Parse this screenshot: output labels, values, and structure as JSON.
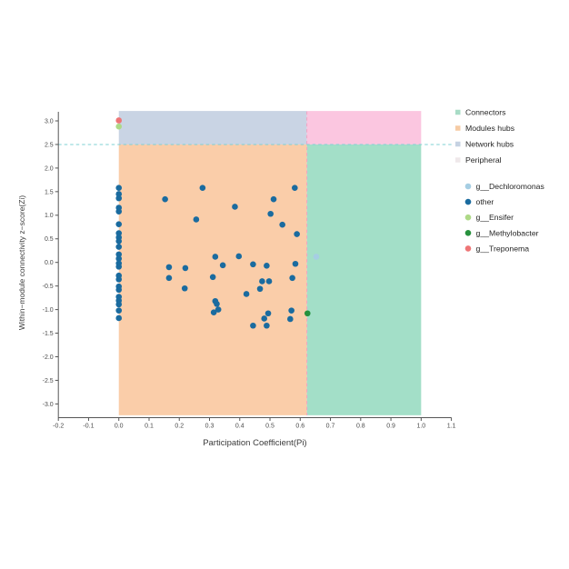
{
  "chart_data": {
    "type": "scatter",
    "xlabel": "Participation Coefficient(Pi)",
    "ylabel": "Within−module connectivity z−score(Zi)",
    "xlim": [
      -0.2,
      1.1
    ],
    "ylim": [
      -3.0,
      3.0
    ],
    "xticks": [
      -0.2,
      -0.1,
      0.0,
      0.1,
      0.2,
      0.3,
      0.4,
      0.5,
      0.6,
      0.7,
      0.8,
      0.9,
      1.0,
      1.1
    ],
    "xtick_labels": [
      "-0.2",
      "-0.1",
      "0.0",
      "0.1",
      "0.2",
      "0.3",
      "0.4",
      "0.5",
      "0.6",
      "0.7",
      "0.8",
      "0.9",
      "1.0",
      "1.1"
    ],
    "yticks": [
      3.0,
      2.5,
      2.0,
      1.5,
      1.0,
      0.5,
      0.0,
      -0.5,
      -1.0,
      -1.5,
      -2.0,
      -2.5,
      -3.0
    ],
    "ytick_labels": [
      "3.0",
      "2.5",
      "2.0",
      "1.5",
      "1.0",
      "0.5",
      "0.0",
      "-0.5",
      "-1.0",
      "-1.5",
      "-2.0",
      "-2.5",
      "-3.0"
    ],
    "grid": false,
    "legend_position": "right",
    "thresholds": {
      "zi": 2.5,
      "pi": 0.622
    },
    "threshold_line_colors": {
      "zi": "#7FD0D3",
      "pi": "#F2A3C3"
    },
    "regions": [
      {
        "quadrant": "top-left",
        "label": "Network hubs",
        "color": "#C9D4E4",
        "x": [
          0.0,
          0.622
        ],
        "y": [
          2.5,
          3.21
        ]
      },
      {
        "quadrant": "top-right",
        "label": "Peripheral",
        "color": "#FBC6E0",
        "x": [
          0.622,
          1.0
        ],
        "y": [
          2.5,
          3.21
        ]
      },
      {
        "quadrant": "bottom-left",
        "label": "Modules hubs",
        "color": "#FACDA9",
        "x": [
          0.0,
          0.622
        ],
        "y": [
          -3.24,
          2.5
        ]
      },
      {
        "quadrant": "bottom-right",
        "label": "Connectors",
        "color": "#A3DFC8",
        "x": [
          0.622,
          1.0
        ],
        "y": [
          -3.24,
          2.5
        ]
      }
    ],
    "series": [
      {
        "name": "g__Dechloromonas",
        "color": "#A6CEE3",
        "points": [
          [
            0.653,
            0.12
          ]
        ]
      },
      {
        "name": "other",
        "color": "#1A6B9F",
        "points": [
          [
            0.0,
            1.58
          ],
          [
            0.0,
            1.45
          ],
          [
            0.0,
            1.36
          ],
          [
            0.0,
            1.16
          ],
          [
            0.0,
            1.08
          ],
          [
            0.0,
            0.81
          ],
          [
            0.0,
            0.62
          ],
          [
            0.0,
            0.53
          ],
          [
            0.0,
            0.45
          ],
          [
            0.0,
            0.33
          ],
          [
            0.0,
            0.17
          ],
          [
            0.0,
            0.08
          ],
          [
            0.0,
            -0.02
          ],
          [
            0.0,
            -0.09
          ],
          [
            0.0,
            -0.28
          ],
          [
            0.0,
            -0.36
          ],
          [
            0.0,
            -0.51
          ],
          [
            0.0,
            -0.58
          ],
          [
            0.0,
            -0.73
          ],
          [
            0.0,
            -0.81
          ],
          [
            0.0,
            -0.89
          ],
          [
            0.0,
            -1.02
          ],
          [
            0.0,
            -1.18
          ],
          [
            0.277,
            1.58
          ],
          [
            0.582,
            1.58
          ],
          [
            0.153,
            1.34
          ],
          [
            0.512,
            1.34
          ],
          [
            0.384,
            1.18
          ],
          [
            0.502,
            1.03
          ],
          [
            0.256,
            0.91
          ],
          [
            0.541,
            0.8
          ],
          [
            0.589,
            0.6
          ],
          [
            0.319,
            0.12
          ],
          [
            0.397,
            0.13
          ],
          [
            0.344,
            -0.06
          ],
          [
            0.444,
            -0.04
          ],
          [
            0.489,
            -0.07
          ],
          [
            0.584,
            -0.03
          ],
          [
            0.166,
            -0.1
          ],
          [
            0.22,
            -0.12
          ],
          [
            0.166,
            -0.33
          ],
          [
            0.311,
            -0.31
          ],
          [
            0.574,
            -0.33
          ],
          [
            0.218,
            -0.55
          ],
          [
            0.474,
            -0.4
          ],
          [
            0.497,
            -0.4
          ],
          [
            0.467,
            -0.56
          ],
          [
            0.422,
            -0.67
          ],
          [
            0.319,
            -0.82
          ],
          [
            0.324,
            -0.88
          ],
          [
            0.329,
            -1.0
          ],
          [
            0.314,
            -1.06
          ],
          [
            0.571,
            -1.02
          ],
          [
            0.494,
            -1.08
          ],
          [
            0.481,
            -1.19
          ],
          [
            0.567,
            -1.2
          ],
          [
            0.444,
            -1.34
          ],
          [
            0.489,
            -1.34
          ]
        ]
      },
      {
        "name": "g__Ensifer",
        "color": "#AED987",
        "points": [
          [
            0.0,
            2.88
          ]
        ]
      },
      {
        "name": "g__Methylobacter",
        "color": "#27913D",
        "points": [
          [
            0.624,
            -1.08
          ]
        ]
      },
      {
        "name": "g__Treponema",
        "color": "#EE7576",
        "points": [
          [
            0.0,
            3.01
          ]
        ]
      }
    ]
  },
  "legend": {
    "region_items": [
      {
        "label": "Connectors",
        "color": "#A8DCC6"
      },
      {
        "label": "Modules hubs",
        "color": "#F6CBA4"
      },
      {
        "label": "Network hubs",
        "color": "#C6D2E2"
      },
      {
        "label": "Peripheral",
        "color": "#EFE8EA"
      }
    ],
    "taxa_items": [
      {
        "label": "g__Dechloromonas",
        "color": "#A6CEE3"
      },
      {
        "label": "other",
        "color": "#1A6B9F"
      },
      {
        "label": "g__Ensifer",
        "color": "#AED987"
      },
      {
        "label": "g__Methylobacter",
        "color": "#27913D"
      },
      {
        "label": "g__Treponema",
        "color": "#EE7576"
      }
    ]
  }
}
